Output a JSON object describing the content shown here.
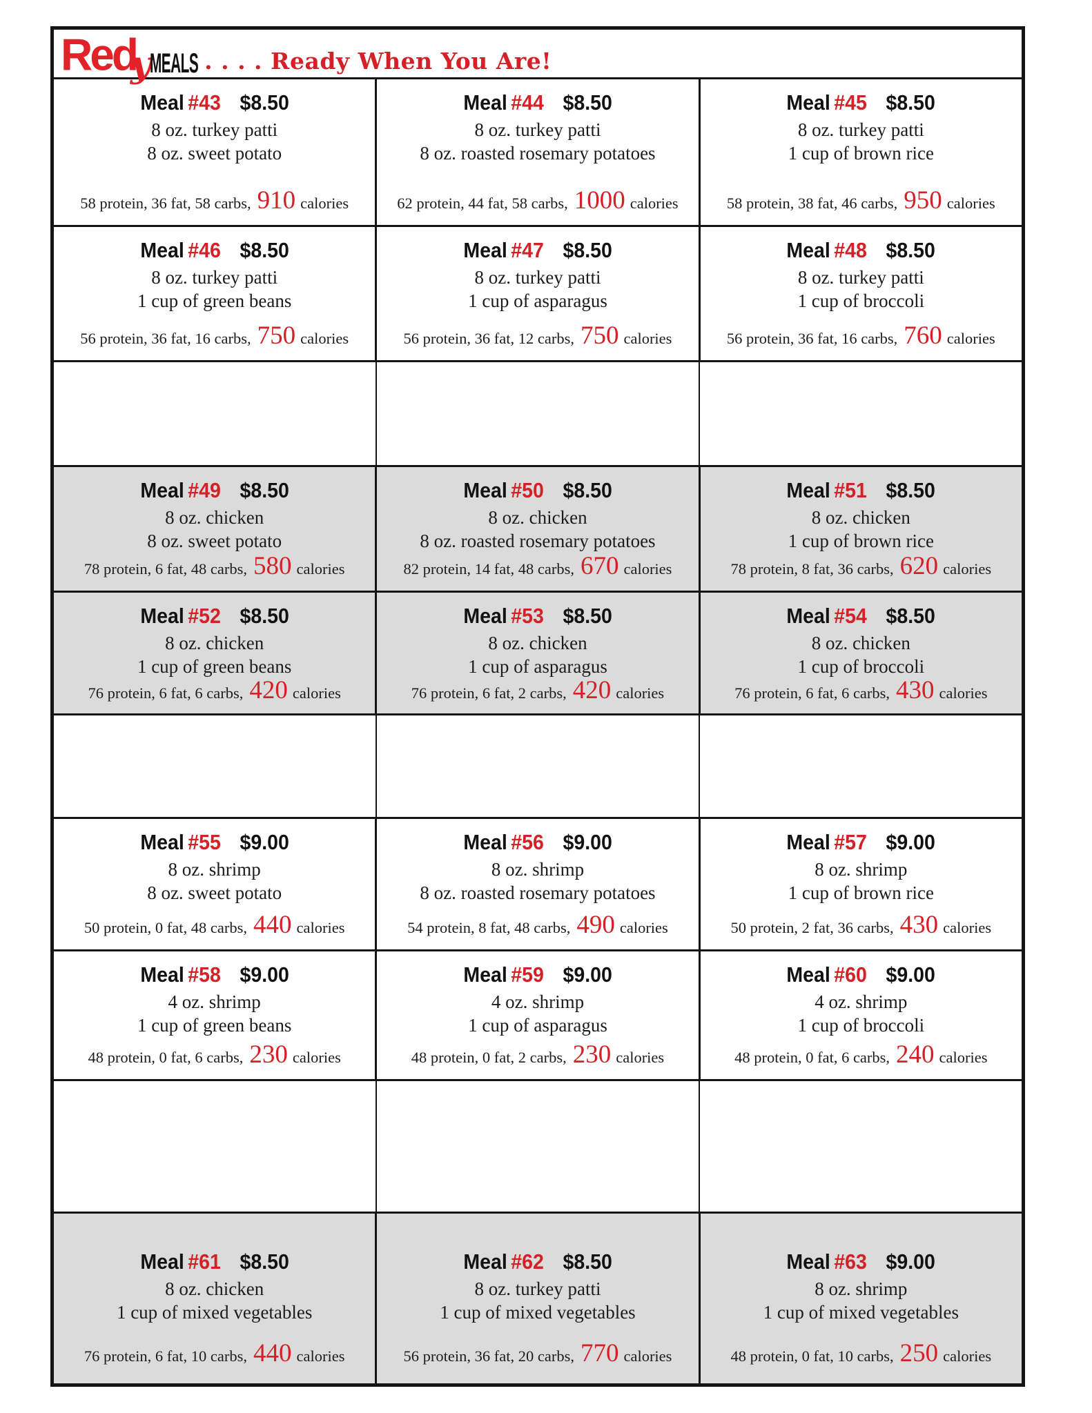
{
  "header": {
    "brand_red": "Red",
    "brand_y": "y",
    "brand_meals": "MEALS",
    "tagline": ". . . .  Ready When You Are!"
  },
  "colors": {
    "accent_red": "#d42127",
    "row_gray": "#dbdbdb",
    "border_black": "#141414"
  },
  "rows": [
    {
      "type": "meals",
      "bg": "white",
      "meals": [
        {
          "label": "Meal",
          "number": "#43",
          "price": "$8.50",
          "items": [
            "8 oz. turkey patti",
            "8 oz. sweet potato"
          ],
          "nutrition_prefix": "58 protein, 36 fat, 58 carbs,",
          "calories": "910",
          "calories_suffix": "calories"
        },
        {
          "label": "Meal",
          "number": "#44",
          "price": "$8.50",
          "items": [
            "8 oz. turkey patti",
            "8 oz. roasted rosemary potatoes"
          ],
          "nutrition_prefix": "62 protein, 44 fat, 58 carbs,",
          "calories": "1000",
          "calories_suffix": "calories"
        },
        {
          "label": "Meal",
          "number": "#45",
          "price": "$8.50",
          "items": [
            "8 oz. turkey patti",
            "1 cup of brown rice"
          ],
          "nutrition_prefix": "58 protein, 38 fat, 46 carbs,",
          "calories": "950",
          "calories_suffix": "calories"
        }
      ]
    },
    {
      "type": "meals",
      "bg": "white",
      "meals": [
        {
          "label": "Meal",
          "number": "#46",
          "price": "$8.50",
          "items": [
            "8 oz. turkey patti",
            "1 cup of green beans"
          ],
          "nutrition_prefix": "56 protein, 36 fat, 16 carbs,",
          "calories": "750",
          "calories_suffix": "calories"
        },
        {
          "label": "Meal",
          "number": "#47",
          "price": "$8.50",
          "items": [
            "8 oz. turkey patti",
            "1 cup of asparagus"
          ],
          "nutrition_prefix": "56 protein, 36 fat, 12 carbs,",
          "calories": "750",
          "calories_suffix": "calories"
        },
        {
          "label": "Meal",
          "number": "#48",
          "price": "$8.50",
          "items": [
            "8 oz. turkey patti",
            "1 cup of broccoli"
          ],
          "nutrition_prefix": "56 protein, 36 fat, 16 carbs,",
          "calories": "760",
          "calories_suffix": "calories"
        }
      ]
    },
    {
      "type": "empty",
      "bg": "white"
    },
    {
      "type": "meals",
      "bg": "gray",
      "meals": [
        {
          "label": "Meal",
          "number": "#49",
          "price": "$8.50",
          "items": [
            "8 oz. chicken",
            "8 oz. sweet potato"
          ],
          "nutrition_prefix": "78 protein, 6 fat, 48 carbs,",
          "calories": "580",
          "calories_suffix": "calories"
        },
        {
          "label": "Meal",
          "number": "#50",
          "price": "$8.50",
          "items": [
            "8 oz. chicken",
            "8 oz. roasted rosemary potatoes"
          ],
          "nutrition_prefix": "82 protein, 14 fat, 48 carbs,",
          "calories": "670",
          "calories_suffix": "calories"
        },
        {
          "label": "Meal",
          "number": "#51",
          "price": "$8.50",
          "items": [
            "8 oz. chicken",
            "1 cup of brown rice"
          ],
          "nutrition_prefix": "78 protein, 8 fat, 36 carbs,",
          "calories": "620",
          "calories_suffix": "calories"
        }
      ]
    },
    {
      "type": "meals",
      "bg": "gray",
      "meals": [
        {
          "label": "Meal",
          "number": "#52",
          "price": "$8.50",
          "items": [
            "8 oz. chicken",
            "1 cup of green beans"
          ],
          "nutrition_prefix": "76 protein, 6 fat, 6 carbs,",
          "calories": "420",
          "calories_suffix": "calories"
        },
        {
          "label": "Meal",
          "number": "#53",
          "price": "$8.50",
          "items": [
            "8 oz. chicken",
            "1 cup of asparagus"
          ],
          "nutrition_prefix": "76 protein, 6 fat, 2 carbs,",
          "calories": "420",
          "calories_suffix": "calories"
        },
        {
          "label": "Meal",
          "number": "#54",
          "price": "$8.50",
          "items": [
            "8 oz. chicken",
            "1 cup of broccoli"
          ],
          "nutrition_prefix": "76 protein, 6 fat, 6 carbs,",
          "calories": "430",
          "calories_suffix": "calories"
        }
      ]
    },
    {
      "type": "empty",
      "bg": "white"
    },
    {
      "type": "meals",
      "bg": "white",
      "meals": [
        {
          "label": "Meal",
          "number": "#55",
          "price": "$9.00",
          "items": [
            "8 oz. shrimp",
            "8 oz. sweet potato"
          ],
          "nutrition_prefix": "50 protein, 0 fat, 48 carbs,",
          "calories": "440",
          "calories_suffix": "calories"
        },
        {
          "label": "Meal",
          "number": "#56",
          "price": "$9.00",
          "items": [
            "8 oz. shrimp",
            "8 oz. roasted rosemary potatoes"
          ],
          "nutrition_prefix": "54 protein, 8 fat, 48 carbs,",
          "calories": "490",
          "calories_suffix": "calories"
        },
        {
          "label": "Meal",
          "number": "#57",
          "price": "$9.00",
          "items": [
            "8 oz. shrimp",
            "1 cup of brown rice"
          ],
          "nutrition_prefix": "50 protein, 2 fat, 36 carbs,",
          "calories": "430",
          "calories_suffix": "calories"
        }
      ]
    },
    {
      "type": "meals",
      "bg": "white",
      "meals": [
        {
          "label": "Meal",
          "number": "#58",
          "price": "$9.00",
          "items": [
            "4 oz. shrimp",
            "1 cup of green beans"
          ],
          "nutrition_prefix": "48 protein, 0 fat, 6 carbs,",
          "calories": "230",
          "calories_suffix": "calories"
        },
        {
          "label": "Meal",
          "number": "#59",
          "price": "$9.00",
          "items": [
            "4 oz. shrimp",
            "1 cup of asparagus"
          ],
          "nutrition_prefix": "48 protein, 0 fat, 2 carbs,",
          "calories": "230",
          "calories_suffix": "calories"
        },
        {
          "label": "Meal",
          "number": "#60",
          "price": "$9.00",
          "items": [
            "4 oz. shrimp",
            "1 cup of broccoli"
          ],
          "nutrition_prefix": "48 protein, 0 fat, 6 carbs,",
          "calories": "240",
          "calories_suffix": "calories"
        }
      ]
    },
    {
      "type": "empty",
      "bg": "white"
    },
    {
      "type": "meals",
      "bg": "gray",
      "meals": [
        {
          "label": "Meal",
          "number": "#61",
          "price": "$8.50",
          "items": [
            "8 oz. chicken",
            "1 cup of mixed vegetables"
          ],
          "nutrition_prefix": "76 protein, 6 fat, 10 carbs,",
          "calories": "440",
          "calories_suffix": "calories"
        },
        {
          "label": "Meal",
          "number": "#62",
          "price": "$8.50",
          "items": [
            "8 oz. turkey patti",
            "1 cup of mixed vegetables"
          ],
          "nutrition_prefix": "56 protein, 36 fat, 20 carbs,",
          "calories": "770",
          "calories_suffix": "calories"
        },
        {
          "label": "Meal",
          "number": "#63",
          "price": "$9.00",
          "items": [
            "8 oz. shrimp",
            "1 cup of mixed vegetables"
          ],
          "nutrition_prefix": "48 protein, 0 fat, 10 carbs,",
          "calories": "250",
          "calories_suffix": "calories"
        }
      ]
    }
  ]
}
